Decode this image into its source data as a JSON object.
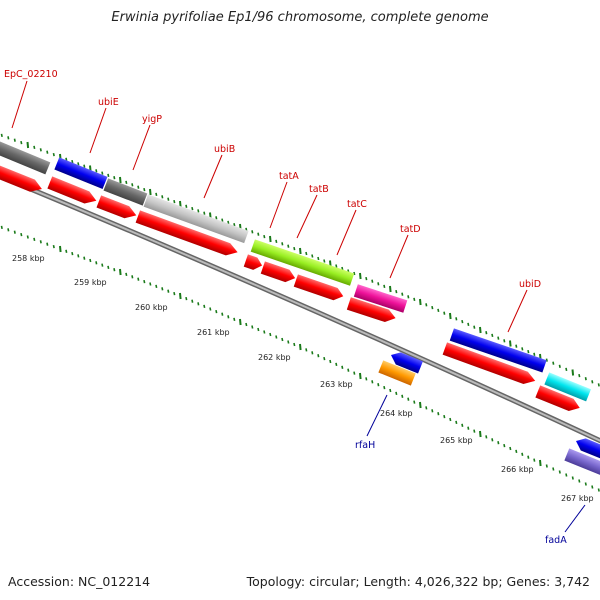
{
  "title": "Erwinia pyrifoliae Ep1/96 chromosome, complete genome",
  "footer": {
    "accession": "Accession: NC_012214",
    "topology": "Topology: circular; Length: 4,026,322 bp; Genes: 3,742"
  },
  "colors": {
    "forward_label": "#cc0000",
    "reverse_label": "#000099",
    "tick": "#1a7a1a",
    "backbone": "#888888"
  },
  "gene_labels": [
    {
      "name": "EpC_02210",
      "strand": "forward"
    },
    {
      "name": "ubiE",
      "strand": "forward"
    },
    {
      "name": "yigP",
      "strand": "forward"
    },
    {
      "name": "ubiB",
      "strand": "forward"
    },
    {
      "name": "tatA",
      "strand": "forward"
    },
    {
      "name": "tatB",
      "strand": "forward"
    },
    {
      "name": "tatC",
      "strand": "forward"
    },
    {
      "name": "tatD",
      "strand": "forward"
    },
    {
      "name": "ubiD",
      "strand": "forward"
    },
    {
      "name": "rfaH",
      "strand": "reverse"
    },
    {
      "name": "fadA",
      "strand": "reverse"
    }
  ],
  "scale_labels": [
    "258 kbp",
    "259 kbp",
    "260 kbp",
    "261 kbp",
    "262 kbp",
    "263 kbp",
    "264 kbp",
    "265 kbp",
    "266 kbp",
    "267 kbp"
  ]
}
